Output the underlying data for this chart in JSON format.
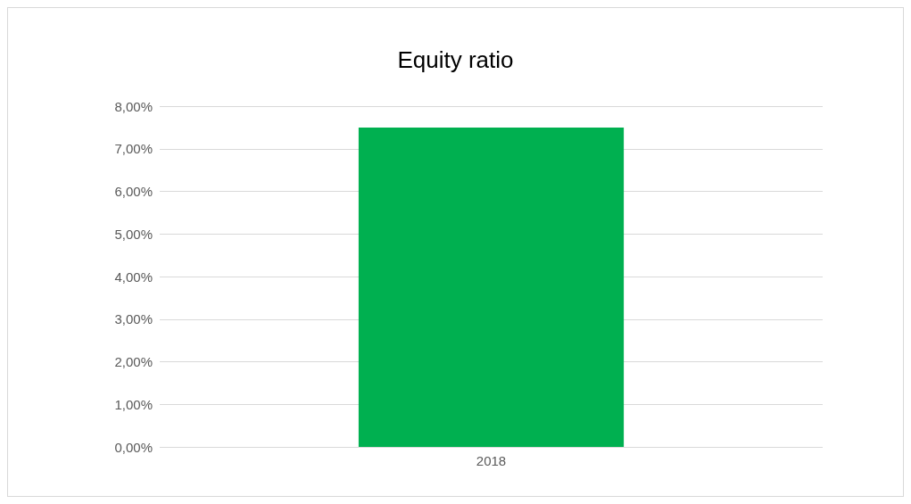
{
  "chart_data": {
    "type": "bar",
    "title": "Equity ratio",
    "categories": [
      "2018"
    ],
    "values": [
      7.5
    ],
    "color": "#00b050",
    "ylim": [
      0,
      8
    ],
    "yticks": [
      {
        "value": 0,
        "label": "0,00%"
      },
      {
        "value": 1,
        "label": "1,00%"
      },
      {
        "value": 2,
        "label": "2,00%"
      },
      {
        "value": 3,
        "label": "3,00%"
      },
      {
        "value": 4,
        "label": "4,00%"
      },
      {
        "value": 5,
        "label": "5,00%"
      },
      {
        "value": 6,
        "label": "6,00%"
      },
      {
        "value": 7,
        "label": "7,00%"
      },
      {
        "value": 8,
        "label": "8,00%"
      }
    ],
    "grid": "y"
  }
}
